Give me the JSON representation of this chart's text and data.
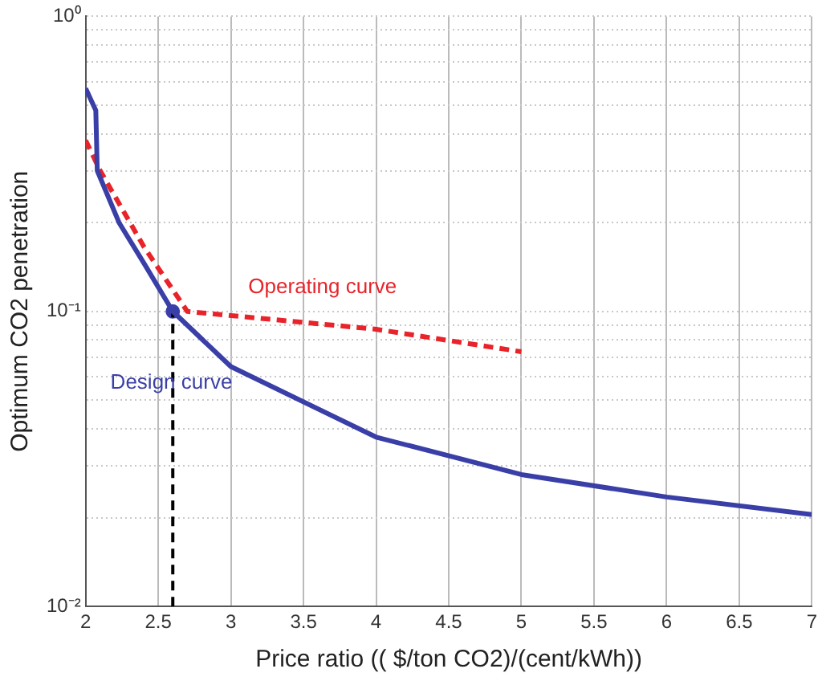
{
  "chart_data": {
    "type": "line",
    "xlabel": "Price ratio (( $/ton CO2)/(cent/kWh))",
    "ylabel": "Optimum CO2 penetration",
    "log": "y",
    "grid": true,
    "legend": false,
    "marker": "none",
    "xlim": [
      2,
      7
    ],
    "xticks": [
      2,
      2.5,
      3,
      3.5,
      4,
      4.5,
      5,
      5.5,
      6,
      6.5,
      7
    ],
    "ylim": [
      0.01,
      1
    ],
    "yticks": [
      {
        "value": 0.01,
        "label": "10⁻²"
      },
      {
        "value": 0.02,
        "label": null
      },
      {
        "value": 0.03,
        "label": null
      },
      {
        "value": 0.04,
        "label": null
      },
      {
        "value": 0.05,
        "label": null
      },
      {
        "value": 0.06,
        "label": null
      },
      {
        "value": 0.07,
        "label": null
      },
      {
        "value": 0.08,
        "label": null
      },
      {
        "value": 0.09,
        "label": null
      },
      {
        "value": 0.1,
        "label": "10⁻¹"
      },
      {
        "value": 0.2,
        "label": null
      },
      {
        "value": 0.3,
        "label": null
      },
      {
        "value": 0.4,
        "label": null
      },
      {
        "value": 0.5,
        "label": null
      },
      {
        "value": 0.6,
        "label": null
      },
      {
        "value": 0.7,
        "label": null
      },
      {
        "value": 0.8,
        "label": null
      },
      {
        "value": 0.9,
        "label": null
      },
      {
        "value": 1,
        "label": "10⁰"
      }
    ],
    "series": [
      {
        "name": "Design curve",
        "color": "#3a3fa8",
        "line_style": "solid",
        "x": [
          2,
          2.07,
          2.08,
          2.23,
          2.4,
          2.6,
          3,
          4,
          5,
          6,
          7
        ],
        "values": [
          0.57,
          0.48,
          0.3,
          0.2,
          0.146,
          0.1,
          0.065,
          0.0375,
          0.028,
          0.0235,
          0.0205
        ]
      },
      {
        "name": "Operating curve",
        "color": "#e8232a",
        "line_style": "dashed",
        "x": [
          2,
          2.1,
          2.4,
          2.7,
          4,
          5
        ],
        "values": [
          0.38,
          0.3,
          0.166,
          0.1,
          0.087,
          0.073
        ]
      },
      {
        "type": "line",
        "color": "#000000",
        "line_style": "dashed",
        "x": [
          2.6,
          2.6
        ],
        "values": [
          0.01,
          0.1
        ]
      },
      {
        "type": "scatter",
        "color": "#3a3fa8",
        "marker": "circle",
        "x": [
          2.6
        ],
        "values": [
          0.1
        ]
      }
    ]
  }
}
